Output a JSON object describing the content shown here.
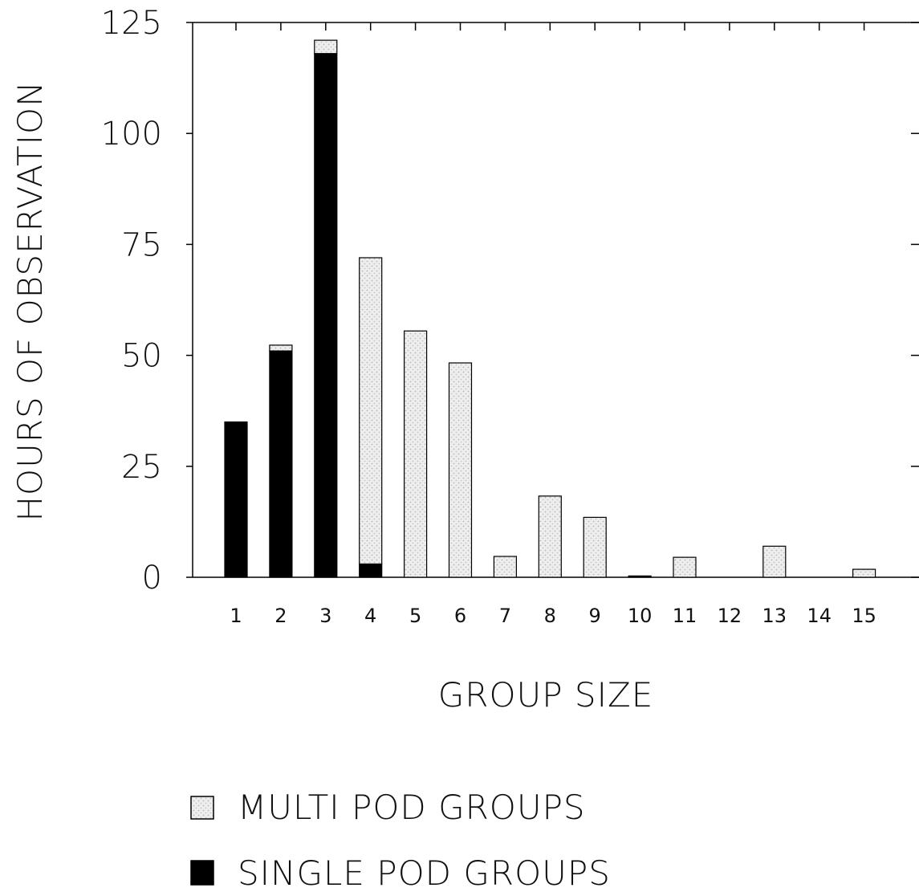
{
  "chart_data": {
    "type": "bar",
    "stacked": true,
    "title": "",
    "xlabel": "GROUP SIZE",
    "ylabel": "HOURS OF OBSERVATION",
    "categories": [
      "1",
      "2",
      "3",
      "4",
      "5",
      "6",
      "7",
      "8",
      "9",
      "10",
      "11",
      "12",
      "13",
      "14",
      "15"
    ],
    "yticks": [
      "0",
      "25",
      "50",
      "75",
      "100",
      "125"
    ],
    "ylim": [
      0,
      125
    ],
    "grid": false,
    "legend_position": "bottom-left",
    "series": [
      {
        "name": "SINGLE POD GROUPS",
        "color": "#000000",
        "values": [
          35,
          51,
          118,
          3,
          0,
          0,
          0,
          0,
          0,
          0.3,
          0,
          0,
          0,
          0,
          0
        ]
      },
      {
        "name": "MULTI POD GROUPS",
        "color": "#e4e4e4",
        "values": [
          0,
          1.3,
          3,
          69,
          55.5,
          48.3,
          4.7,
          18.3,
          13.5,
          0,
          4.5,
          0,
          7,
          0,
          1.8
        ]
      }
    ]
  }
}
